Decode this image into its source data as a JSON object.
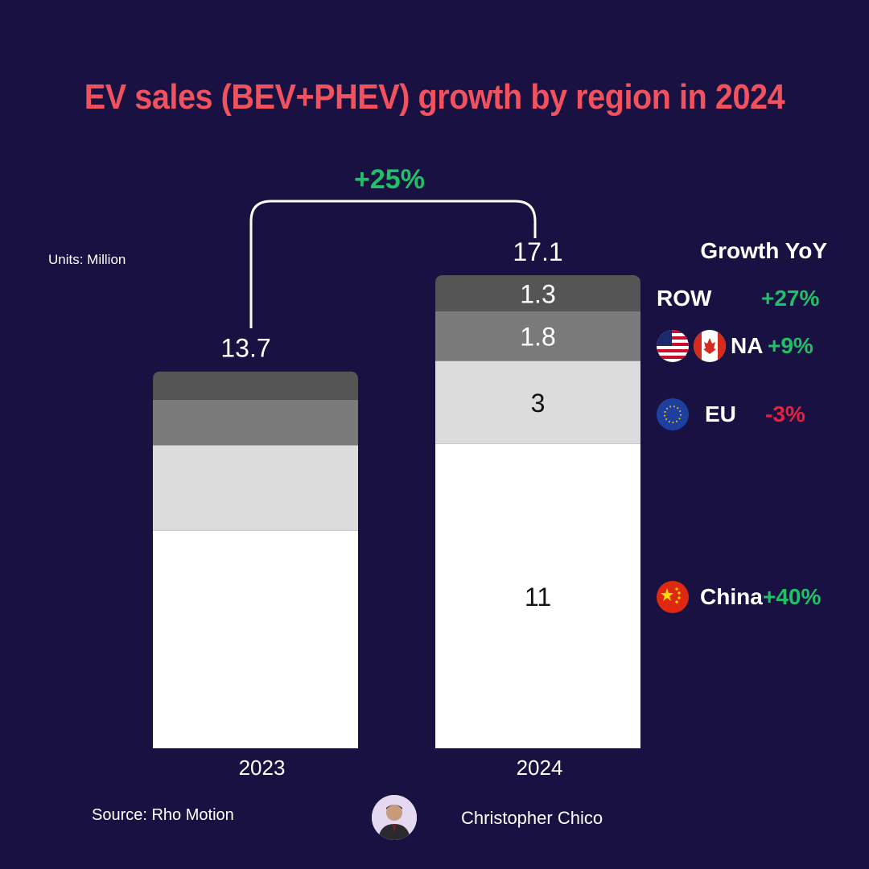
{
  "title": "EV sales (BEV+PHEV) growth by region in 2024",
  "units_label": "Units: Million",
  "growth_header": "Growth YoY",
  "source": "Source: Rho Motion",
  "author": "Christopher Chico",
  "colors": {
    "background": "#181141",
    "title": "#f1525e",
    "positive": "#1fc067",
    "negative": "#e8203b"
  },
  "chart_data": {
    "type": "bar",
    "stacked": true,
    "categories": [
      "2023",
      "2024"
    ],
    "totals": [
      "13.7",
      "17.1"
    ],
    "total_change_label": "+25%",
    "ylim": [
      0,
      17.1
    ],
    "series": [
      {
        "key": "China",
        "color": "#ffffff",
        "values": [
          7.86,
          11
        ],
        "labels": [
          "",
          "11"
        ]
      },
      {
        "key": "EU",
        "color": "#dcdcdc",
        "values": [
          3.09,
          3
        ],
        "labels": [
          "",
          "3"
        ]
      },
      {
        "key": "NA",
        "color": "#7a7a7a",
        "values": [
          1.65,
          1.8
        ],
        "labels": [
          "",
          "1.8"
        ]
      },
      {
        "key": "ROW",
        "color": "#555555",
        "values": [
          1.02,
          1.3
        ],
        "labels": [
          "",
          "1.3"
        ]
      }
    ]
  },
  "legend": [
    {
      "name": "ROW",
      "growth": "+27%",
      "flags": []
    },
    {
      "name": "NA",
      "growth": "+9%",
      "flags": [
        "us-flag-icon",
        "canada-flag-icon"
      ]
    },
    {
      "name": "EU",
      "growth": "-3%",
      "flags": [
        "eu-flag-icon"
      ]
    },
    {
      "name": "China",
      "growth": "+40%",
      "flags": [
        "china-flag-icon"
      ]
    }
  ]
}
